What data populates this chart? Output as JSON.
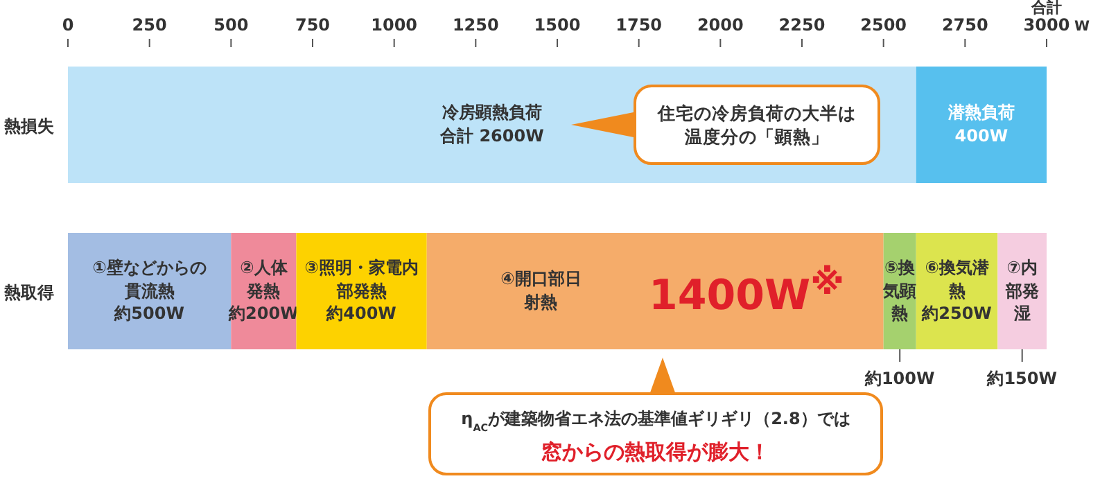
{
  "chart_data": {
    "type": "bar",
    "orientation": "horizontal",
    "stacked": true,
    "categories": [
      "熱損失",
      "熱取得"
    ],
    "xlim": [
      0,
      3000
    ],
    "xticks": [
      0,
      250,
      500,
      750,
      1000,
      1250,
      1500,
      1750,
      2000,
      2250,
      2500,
      2750,
      3000
    ],
    "xlabel": "W",
    "grid": false,
    "series": [
      {
        "name": "冷房顕熱負荷",
        "color": "#bde3f8",
        "values": [
          2600,
          null
        ],
        "value_labels": [
          "合計 2600W",
          null
        ]
      },
      {
        "name": "潜熱負荷",
        "color": "#57c0ee",
        "values": [
          400,
          null
        ],
        "value_labels": [
          "400W",
          null
        ]
      },
      {
        "name": "①壁などからの貫流熱",
        "color": "#a3bde3",
        "values": [
          null,
          500
        ],
        "value_labels": [
          null,
          "約500W"
        ]
      },
      {
        "name": "②人体発熱",
        "color": "#ef8a9a",
        "values": [
          null,
          200
        ],
        "value_labels": [
          null,
          "約200W"
        ]
      },
      {
        "name": "③照明・家電内部発熱",
        "color": "#fdd200",
        "values": [
          null,
          400
        ],
        "value_labels": [
          null,
          "約400W"
        ]
      },
      {
        "name": "④開口部日射熱",
        "color": "#f5ac6a",
        "values": [
          null,
          1400
        ],
        "value_labels": [
          null,
          "1400W$^{※}$"
        ]
      },
      {
        "name": "⑤換気顕熱",
        "color": "#a5d16e",
        "values": [
          null,
          100
        ],
        "value_labels": [
          null,
          "約100W"
        ]
      },
      {
        "name": "⑥換気潜熱",
        "color": "#dce44e",
        "values": [
          null,
          250
        ],
        "value_labels": [
          null,
          "約250W"
        ]
      },
      {
        "name": "⑦内部発湿",
        "color": "#f5cde0",
        "values": [
          null,
          150
        ],
        "value_labels": [
          null,
          "約150W"
        ]
      }
    ],
    "annotations": [
      "合計",
      "住宅の冷房負荷の大半は温度分の「顕熱」",
      "η$_{AC}$が建築物省エネ法の基準値ギリギリ（2.8）では",
      "窓からの熱取得が膨大！"
    ]
  }
}
